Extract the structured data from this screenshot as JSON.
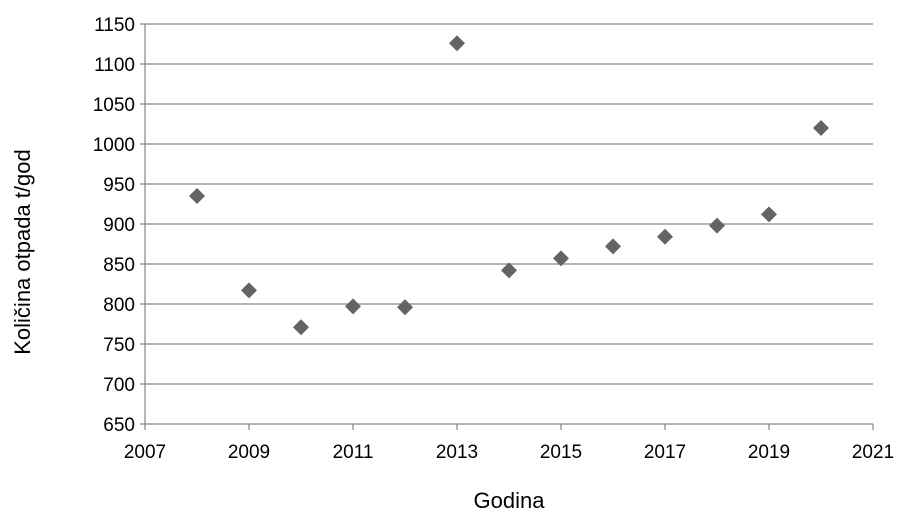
{
  "chart_data": {
    "type": "scatter",
    "title": "",
    "xlabel": "Godina",
    "ylabel": "Količina otpada t/god",
    "xlim": [
      2007,
      2021
    ],
    "ylim": [
      650,
      1150
    ],
    "x_ticks": [
      2007,
      2009,
      2011,
      2013,
      2015,
      2017,
      2019,
      2021
    ],
    "y_ticks": [
      650,
      700,
      750,
      800,
      850,
      900,
      950,
      1000,
      1050,
      1100,
      1150
    ],
    "grid": {
      "horizontal": true,
      "vertical": false
    },
    "legend": "none",
    "marker": {
      "shape": "diamond",
      "color": "#646464"
    },
    "gridline_color": "#868686",
    "series": [
      {
        "x": [
          2008,
          2009,
          2010,
          2011,
          2012,
          2013,
          2014,
          2015,
          2016,
          2017,
          2018,
          2019,
          2020
        ],
        "y": [
          935,
          817,
          771,
          797,
          796,
          1126,
          842,
          857,
          872,
          884,
          898,
          912,
          1020
        ]
      }
    ]
  }
}
